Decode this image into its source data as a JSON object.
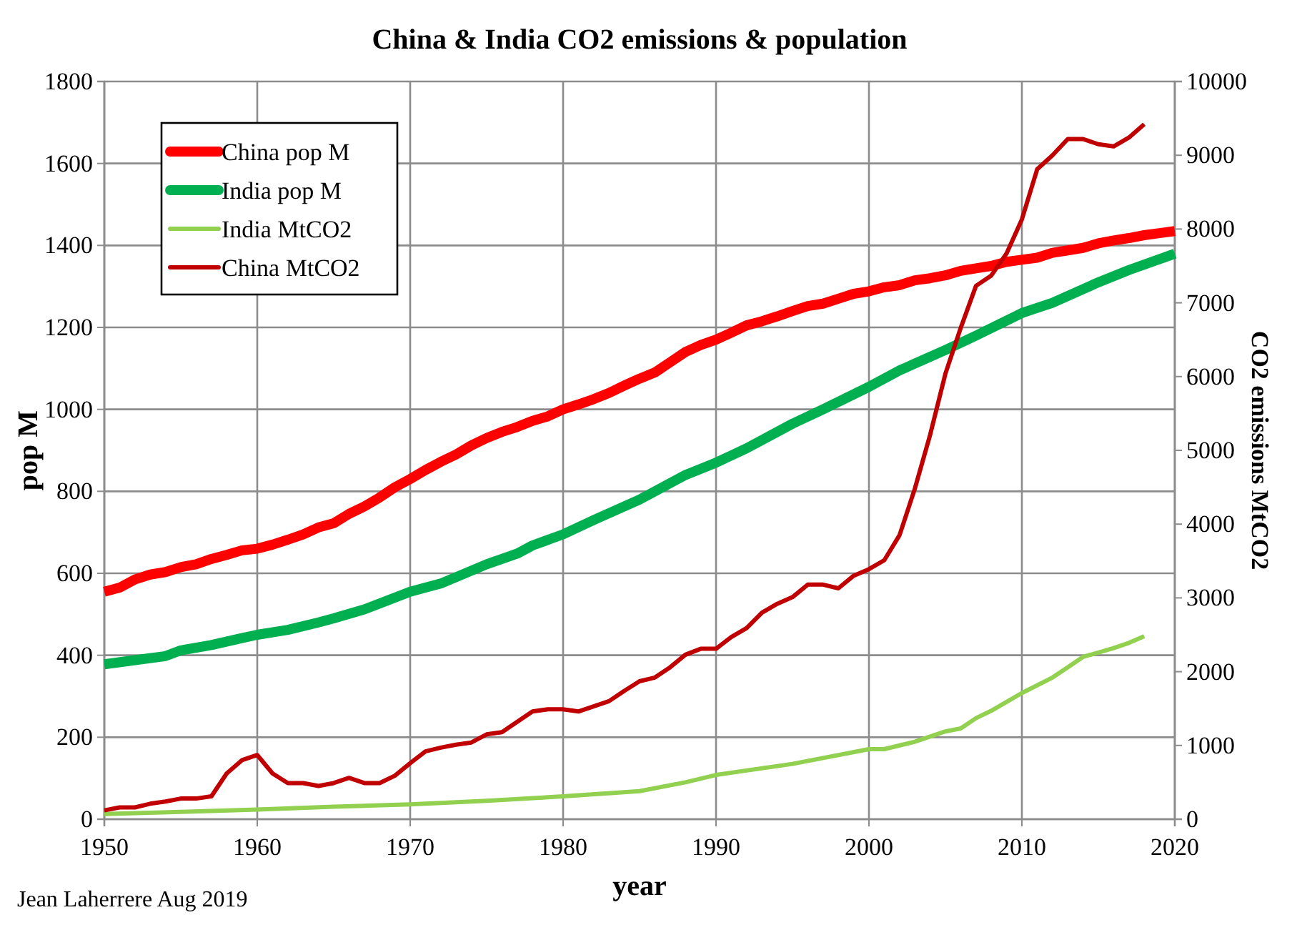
{
  "chart_data": {
    "type": "line",
    "title": "China & India CO2 emissions & population",
    "xlabel": "year",
    "ylabel": "pop M",
    "y2label": "CO2 emissions MtCO2",
    "annotations": [
      "Jean Laherrere Aug 2019"
    ],
    "xlim": [
      1950,
      2020
    ],
    "xticks": [
      1950,
      1960,
      1970,
      1980,
      1990,
      2000,
      2010,
      2020
    ],
    "ylim": [
      0,
      1800
    ],
    "yticks": [
      0,
      200,
      400,
      600,
      800,
      1000,
      1200,
      1400,
      1600,
      1800
    ],
    "y2lim": [
      0,
      10000
    ],
    "y2ticks": [
      0,
      1000,
      2000,
      3000,
      4000,
      5000,
      6000,
      7000,
      8000,
      9000,
      10000
    ],
    "grid": true,
    "legend": "top left",
    "marker": "none",
    "line_style": "solid",
    "series": [
      {
        "name": "China pop M",
        "color": "#ff0000",
        "x": [
          1950,
          1951,
          1952,
          1953,
          1954,
          1955,
          1956,
          1957,
          1958,
          1959,
          1960,
          1961,
          1962,
          1963,
          1964,
          1965,
          1966,
          1967,
          1968,
          1969,
          1970,
          1971,
          1972,
          1973,
          1974,
          1975,
          1976,
          1977,
          1978,
          1979,
          1980,
          1981,
          1982,
          1983,
          1984,
          1985,
          1986,
          1987,
          1988,
          1989,
          1990,
          1991,
          1992,
          1993,
          1994,
          1995,
          1996,
          1997,
          1998,
          1999,
          2000,
          2001,
          2002,
          2003,
          2004,
          2005,
          2006,
          2007,
          2008,
          2009,
          2010,
          2011,
          2012,
          2013,
          2014,
          2015,
          2016,
          2017,
          2018,
          2019,
          2020
        ],
        "values": [
          555,
          565,
          585,
          597,
          603,
          615,
          622,
          635,
          645,
          656,
          660,
          670,
          682,
          695,
          712,
          722,
          745,
          763,
          785,
          810,
          830,
          852,
          872,
          890,
          912,
          930,
          945,
          957,
          972,
          983,
          1000,
          1012,
          1025,
          1040,
          1058,
          1075,
          1090,
          1115,
          1140,
          1157,
          1170,
          1187,
          1205,
          1215,
          1227,
          1240,
          1252,
          1258,
          1270,
          1282,
          1288,
          1298,
          1303,
          1315,
          1320,
          1327,
          1338,
          1344,
          1350,
          1360,
          1365,
          1370,
          1382,
          1388,
          1394,
          1405,
          1412,
          1418,
          1425,
          1430,
          1435
        ]
      },
      {
        "name": "India pop M",
        "color": "#00b050",
        "x": [
          1950,
          1952,
          1954,
          1955,
          1957,
          1959,
          1960,
          1962,
          1964,
          1965,
          1967,
          1970,
          1972,
          1975,
          1977,
          1978,
          1980,
          1982,
          1985,
          1988,
          1990,
          1992,
          1995,
          1997,
          2000,
          2002,
          2005,
          2007,
          2010,
          2012,
          2015,
          2017,
          2020
        ],
        "values": [
          378,
          388,
          398,
          412,
          425,
          442,
          450,
          462,
          480,
          490,
          512,
          555,
          575,
          622,
          648,
          668,
          695,
          730,
          780,
          840,
          870,
          905,
          965,
          1000,
          1055,
          1095,
          1145,
          1180,
          1235,
          1260,
          1310,
          1340,
          1380
        ]
      },
      {
        "name": "India MtCO2",
        "color": "#92d050",
        "axis": "y2",
        "x": [
          1950,
          1955,
          1960,
          1965,
          1970,
          1975,
          1980,
          1985,
          1988,
          1990,
          1995,
          2000,
          2001,
          2003,
          2005,
          2006,
          2007,
          2008,
          2009,
          2010,
          2012,
          2013,
          2014,
          2015,
          2016,
          2017,
          2018
        ],
        "values": [
          70,
          100,
          130,
          170,
          200,
          250,
          310,
          380,
          500,
          600,
          750,
          950,
          950,
          1050,
          1190,
          1230,
          1370,
          1470,
          1590,
          1710,
          1920,
          2060,
          2200,
          2260,
          2320,
          2390,
          2480
        ]
      },
      {
        "name": "China MtCO2",
        "color": "#c00000",
        "axis": "y2",
        "x": [
          1950,
          1951,
          1952,
          1953,
          1954,
          1955,
          1956,
          1957,
          1958,
          1959,
          1960,
          1961,
          1962,
          1963,
          1964,
          1965,
          1966,
          1967,
          1968,
          1969,
          1970,
          1971,
          1972,
          1973,
          1974,
          1975,
          1976,
          1977,
          1978,
          1979,
          1980,
          1981,
          1982,
          1983,
          1984,
          1985,
          1986,
          1987,
          1988,
          1989,
          1990,
          1991,
          1992,
          1993,
          1994,
          1995,
          1996,
          1997,
          1998,
          1999,
          2000,
          2001,
          2002,
          2003,
          2004,
          2005,
          2006,
          2007,
          2008,
          2009,
          2010,
          2011,
          2012,
          2013,
          2014,
          2015,
          2016,
          2017,
          2018
        ],
        "values": [
          120,
          160,
          160,
          210,
          240,
          280,
          280,
          310,
          620,
          800,
          870,
          620,
          490,
          490,
          450,
          490,
          560,
          490,
          490,
          590,
          760,
          920,
          970,
          1010,
          1040,
          1150,
          1180,
          1320,
          1460,
          1490,
          1490,
          1460,
          1530,
          1600,
          1740,
          1870,
          1920,
          2060,
          2230,
          2310,
          2310,
          2470,
          2590,
          2800,
          2920,
          3010,
          3180,
          3180,
          3130,
          3300,
          3390,
          3510,
          3850,
          4480,
          5210,
          6040,
          6660,
          7230,
          7370,
          7670,
          8130,
          8810,
          9000,
          9220,
          9220,
          9150,
          9120,
          9240,
          9420
        ]
      }
    ]
  }
}
